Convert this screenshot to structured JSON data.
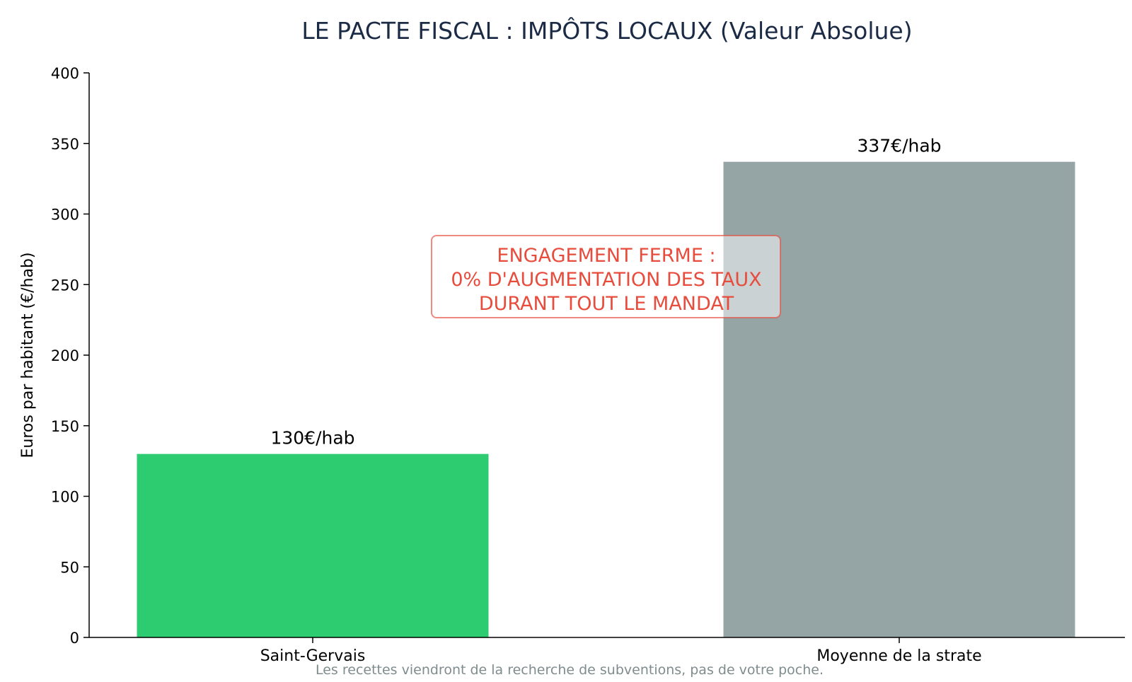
{
  "chart_data": {
    "type": "bar",
    "title": "LE PACTE FISCAL : IMPÔTS LOCAUX (Valeur Absolue)",
    "xlabel": "",
    "ylabel": "Euros par habitant (€/hab)",
    "categories": [
      "Saint-Gervais",
      "Moyenne de la strate"
    ],
    "values": [
      130,
      337
    ],
    "value_labels": [
      "130€/hab",
      "337€/hab"
    ],
    "bar_colors": [
      "#2ecc71",
      "#95a5a6"
    ],
    "ylim": [
      0,
      400
    ],
    "yticks": [
      0,
      50,
      100,
      150,
      200,
      250,
      300,
      350,
      400
    ],
    "grid": false,
    "legend": "none",
    "annotation": {
      "lines": [
        "ENGAGEMENT FERME :",
        "0% D'AUGMENTATION DES TAUX",
        "DURANT TOUT LE MANDAT"
      ],
      "color": "#e74c3c"
    },
    "footnote": "Les recettes viendront de la recherche de subventions, pas de votre poche.",
    "footnote_color": "#7f8c8d",
    "title_color": "#1b2b45"
  }
}
